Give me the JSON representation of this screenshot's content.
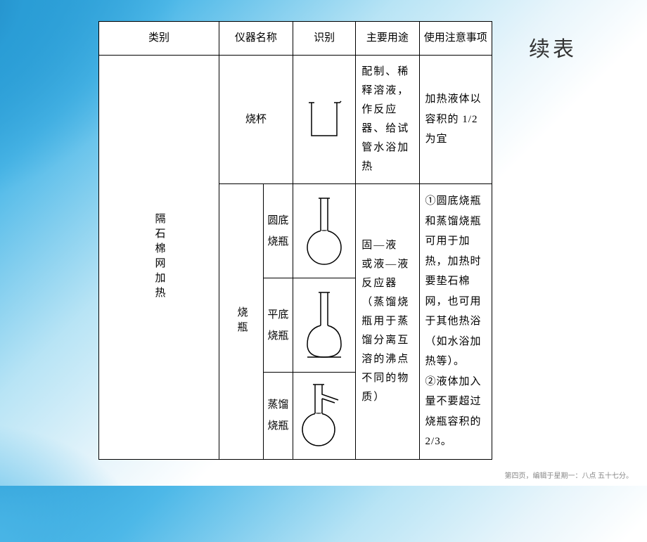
{
  "sideTitle": "续表",
  "footer": "第四页，编辑于星期一：八点 五十七分。",
  "headers": {
    "col1": "类别",
    "col2": "仪器名称",
    "col3": "识别",
    "col4": "主要用途",
    "col5": "使用注意事项"
  },
  "category": "隔石棉网加热",
  "row1": {
    "name": "烧杯",
    "usage": "配制、稀释溶液，作反应器、给试管水浴加热",
    "note": "加热液体以容积的 1/2 为宜"
  },
  "flaskGroup": {
    "parent": "烧瓶",
    "sub1": "圆底\n烧瓶",
    "sub2": "平底\n烧瓶",
    "sub3": "蒸馏\n烧瓶",
    "usage": "固—液　或液—液　反应器（蒸馏烧瓶用于蒸馏分离互溶的沸点不同的物质）",
    "note": "①圆底烧瓶和蒸馏烧瓶可用于加热，加热时要垫石棉网，也可用于其他热浴（如水浴加热等）。\n②液体加入量不要超过烧瓶容积的2/3。"
  },
  "style": {
    "bg_gradient": [
      "#2a9dd6",
      "#4db8e8",
      "#b8e4f5",
      "#e8f5fb",
      "#ffffff"
    ],
    "border_color": "#000000",
    "font_family": "SimSun",
    "base_fontsize": 15,
    "title_fontsize": 30,
    "stroke_width": 1.5
  }
}
